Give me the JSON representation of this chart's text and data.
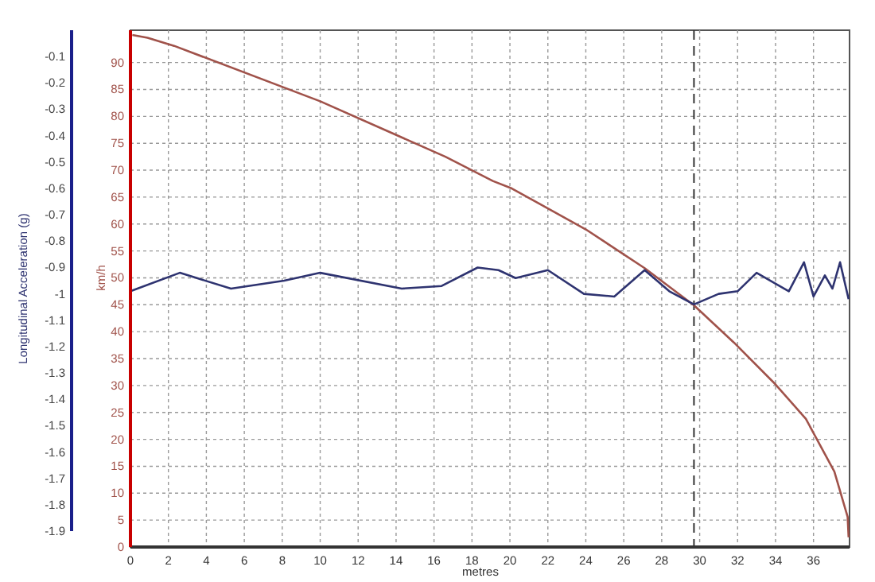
{
  "chart_data": {
    "type": "line",
    "xlabel": "metres",
    "ylabel": "km/h",
    "y2label": "Longitudinal Acceleration (g)",
    "xlim": [
      0,
      37.9
    ],
    "xticks": [
      0,
      2,
      4,
      6,
      8,
      10,
      12,
      14,
      16,
      18,
      20,
      22,
      24,
      26,
      28,
      30,
      32,
      34,
      36
    ],
    "ylim": [
      0,
      96
    ],
    "yticks": [
      0,
      5,
      10,
      15,
      20,
      25,
      30,
      35,
      40,
      45,
      50,
      55,
      60,
      65,
      70,
      75,
      80,
      85,
      90
    ],
    "y2lim": [
      -1.96,
      0
    ],
    "y2ticks": [
      -0.1,
      -0.2,
      -0.3,
      -0.4,
      -0.5,
      -0.6,
      -0.7,
      -0.8,
      -0.9,
      -1,
      -1.1,
      -1.2,
      -1.3,
      -1.4,
      -1.5,
      -1.6,
      -1.7,
      -1.8,
      -1.9
    ],
    "grid": true,
    "line_style": "solid",
    "marker": "none",
    "ref_lines": [
      {
        "axis": "x",
        "value": 29.7,
        "color": "#333333",
        "line_style": "dashed"
      }
    ],
    "series": [
      {
        "color": "#a0524a",
        "x": [
          0.1,
          0.9,
          2.3,
          10,
          16.6,
          19.1,
          20.1,
          24,
          27.1,
          29.7,
          31.8,
          34,
          35.6,
          37.1,
          37.8,
          37.85
        ],
        "values": [
          95.1,
          94.6,
          93.1,
          82.8,
          72.5,
          68,
          66.6,
          59,
          51.8,
          44.9,
          38,
          30.2,
          23.8,
          14,
          5.6,
          1.8
        ]
      },
      {
        "color": "#2e3370",
        "axis": "y2",
        "x": [
          0,
          2.6,
          5.3,
          8.1,
          10,
          14.3,
          16.4,
          18.3,
          19.4,
          20.3,
          22,
          23.9,
          25.5,
          27.1,
          28.4,
          29.7,
          31,
          32,
          33,
          34.7,
          35.5,
          36,
          36.6,
          37,
          37.4,
          37.85
        ],
        "values": [
          -0.99,
          -0.92,
          -0.98,
          -0.95,
          -0.92,
          -0.98,
          -0.97,
          -0.9,
          -0.91,
          -0.94,
          -0.91,
          -1,
          -1.01,
          -0.91,
          -0.99,
          -1.04,
          -1,
          -0.99,
          -0.92,
          -0.99,
          -0.88,
          -1.01,
          -0.93,
          -0.98,
          -0.88,
          -1.02
        ]
      }
    ]
  }
}
